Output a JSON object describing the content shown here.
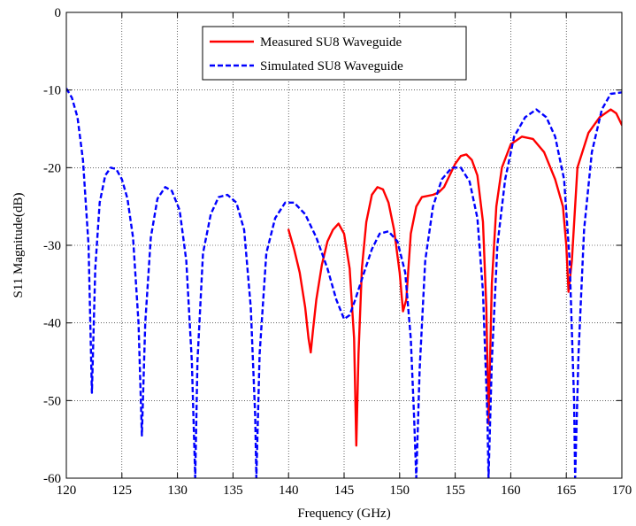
{
  "chart_data": {
    "type": "line",
    "title": "",
    "xlabel": "Frequency (GHz)",
    "ylabel": "S11 Magnitude(dB)",
    "xlim": [
      120,
      170
    ],
    "ylim": [
      -60,
      0
    ],
    "xticks": [
      120,
      125,
      130,
      135,
      140,
      145,
      150,
      155,
      160,
      165,
      170
    ],
    "yticks": [
      0,
      -10,
      -20,
      -30,
      -40,
      -50,
      -60
    ],
    "xtick_labels": [
      "120",
      "125",
      "130",
      "135",
      "140",
      "145",
      "150",
      "155",
      "160",
      "165",
      "170"
    ],
    "ytick_labels": [
      "0",
      "-10",
      "-20",
      "-30",
      "-40",
      "-50",
      "-60"
    ],
    "grid": true,
    "legend_position": "top-center",
    "series": [
      {
        "name": "Measured SU8 Waveguide",
        "color": "#ff0000",
        "style": "solid",
        "points": [
          [
            140.0,
            -28.0
          ],
          [
            140.5,
            -30.5
          ],
          [
            141.0,
            -33.5
          ],
          [
            141.5,
            -38.0
          ],
          [
            141.8,
            -42.0
          ],
          [
            142.0,
            -43.8
          ],
          [
            142.2,
            -41.0
          ],
          [
            142.5,
            -37.0
          ],
          [
            143.0,
            -32.5
          ],
          [
            143.5,
            -29.5
          ],
          [
            144.0,
            -28.0
          ],
          [
            144.5,
            -27.2
          ],
          [
            145.0,
            -28.5
          ],
          [
            145.5,
            -33.0
          ],
          [
            145.9,
            -42.0
          ],
          [
            146.1,
            -55.8
          ],
          [
            146.3,
            -44.0
          ],
          [
            146.6,
            -33.0
          ],
          [
            147.0,
            -27.0
          ],
          [
            147.5,
            -23.5
          ],
          [
            148.0,
            -22.5
          ],
          [
            148.5,
            -22.8
          ],
          [
            149.0,
            -24.5
          ],
          [
            149.5,
            -28.0
          ],
          [
            150.0,
            -33.5
          ],
          [
            150.3,
            -38.5
          ],
          [
            150.6,
            -37.0
          ],
          [
            151.0,
            -28.5
          ],
          [
            151.5,
            -25.0
          ],
          [
            152.0,
            -23.8
          ],
          [
            153.0,
            -23.5
          ],
          [
            153.5,
            -23.2
          ],
          [
            154.0,
            -22.5
          ],
          [
            154.5,
            -21.0
          ],
          [
            155.0,
            -19.5
          ],
          [
            155.5,
            -18.5
          ],
          [
            156.0,
            -18.3
          ],
          [
            156.5,
            -19.0
          ],
          [
            157.0,
            -21.0
          ],
          [
            157.5,
            -27.0
          ],
          [
            157.8,
            -38.0
          ],
          [
            158.0,
            -53.0
          ],
          [
            158.3,
            -35.0
          ],
          [
            158.7,
            -25.0
          ],
          [
            159.2,
            -20.0
          ],
          [
            160.0,
            -17.0
          ],
          [
            161.0,
            -16.0
          ],
          [
            162.0,
            -16.3
          ],
          [
            163.0,
            -18.0
          ],
          [
            164.0,
            -21.5
          ],
          [
            164.7,
            -25.0
          ],
          [
            165.0,
            -30.0
          ],
          [
            165.2,
            -36.0
          ],
          [
            165.5,
            -32.0
          ],
          [
            166.0,
            -20.0
          ],
          [
            167.0,
            -15.5
          ],
          [
            168.0,
            -13.5
          ],
          [
            169.0,
            -12.5
          ],
          [
            169.5,
            -13.0
          ],
          [
            170.0,
            -14.5
          ]
        ]
      },
      {
        "name": "Simulated SU8 Waveguide",
        "color": "#0000ff",
        "style": "dashed",
        "points": [
          [
            120.0,
            -9.8
          ],
          [
            120.5,
            -11.0
          ],
          [
            121.0,
            -13.5
          ],
          [
            121.5,
            -19.0
          ],
          [
            122.0,
            -30.0
          ],
          [
            122.3,
            -49.0
          ],
          [
            122.6,
            -33.0
          ],
          [
            123.0,
            -24.5
          ],
          [
            123.5,
            -21.0
          ],
          [
            124.0,
            -20.0
          ],
          [
            124.5,
            -20.2
          ],
          [
            125.0,
            -21.5
          ],
          [
            125.5,
            -24.0
          ],
          [
            126.0,
            -29.0
          ],
          [
            126.5,
            -40.0
          ],
          [
            126.8,
            -54.5
          ],
          [
            127.1,
            -40.0
          ],
          [
            127.6,
            -29.0
          ],
          [
            128.2,
            -24.0
          ],
          [
            128.9,
            -22.5
          ],
          [
            129.5,
            -23.0
          ],
          [
            130.2,
            -25.5
          ],
          [
            130.8,
            -32.0
          ],
          [
            131.3,
            -45.0
          ],
          [
            131.6,
            -60.0
          ],
          [
            131.8,
            -45.0
          ],
          [
            132.3,
            -31.0
          ],
          [
            133.0,
            -26.0
          ],
          [
            133.7,
            -23.8
          ],
          [
            134.5,
            -23.5
          ],
          [
            135.3,
            -24.5
          ],
          [
            136.0,
            -28.0
          ],
          [
            136.6,
            -38.0
          ],
          [
            137.0,
            -52.0
          ],
          [
            137.1,
            -60.0
          ],
          [
            137.4,
            -44.0
          ],
          [
            138.0,
            -31.0
          ],
          [
            138.8,
            -26.5
          ],
          [
            139.7,
            -24.5
          ],
          [
            140.5,
            -24.5
          ],
          [
            141.5,
            -26.0
          ],
          [
            142.5,
            -29.0
          ],
          [
            143.5,
            -33.0
          ],
          [
            144.3,
            -37.0
          ],
          [
            145.0,
            -39.5
          ],
          [
            145.5,
            -39.0
          ],
          [
            146.0,
            -37.0
          ],
          [
            146.8,
            -33.5
          ],
          [
            147.5,
            -30.5
          ],
          [
            148.2,
            -28.5
          ],
          [
            149.0,
            -28.2
          ],
          [
            149.8,
            -29.5
          ],
          [
            150.5,
            -33.5
          ],
          [
            151.0,
            -42.0
          ],
          [
            151.3,
            -52.0
          ],
          [
            151.5,
            -60.0
          ],
          [
            151.8,
            -46.0
          ],
          [
            152.3,
            -32.0
          ],
          [
            153.0,
            -25.0
          ],
          [
            153.8,
            -21.5
          ],
          [
            154.7,
            -20.0
          ],
          [
            155.5,
            -20.0
          ],
          [
            156.3,
            -21.8
          ],
          [
            157.0,
            -26.5
          ],
          [
            157.5,
            -36.0
          ],
          [
            157.9,
            -52.0
          ],
          [
            158.0,
            -60.0
          ],
          [
            158.3,
            -45.0
          ],
          [
            158.8,
            -30.0
          ],
          [
            159.5,
            -21.5
          ],
          [
            160.3,
            -16.0
          ],
          [
            161.3,
            -13.5
          ],
          [
            162.3,
            -12.5
          ],
          [
            163.2,
            -13.5
          ],
          [
            164.0,
            -16.0
          ],
          [
            164.8,
            -21.5
          ],
          [
            165.3,
            -32.0
          ],
          [
            165.7,
            -50.0
          ],
          [
            165.8,
            -60.0
          ],
          [
            166.1,
            -44.0
          ],
          [
            166.6,
            -28.0
          ],
          [
            167.3,
            -18.0
          ],
          [
            168.2,
            -12.5
          ],
          [
            169.0,
            -10.5
          ],
          [
            170.0,
            -10.3
          ]
        ]
      }
    ]
  }
}
